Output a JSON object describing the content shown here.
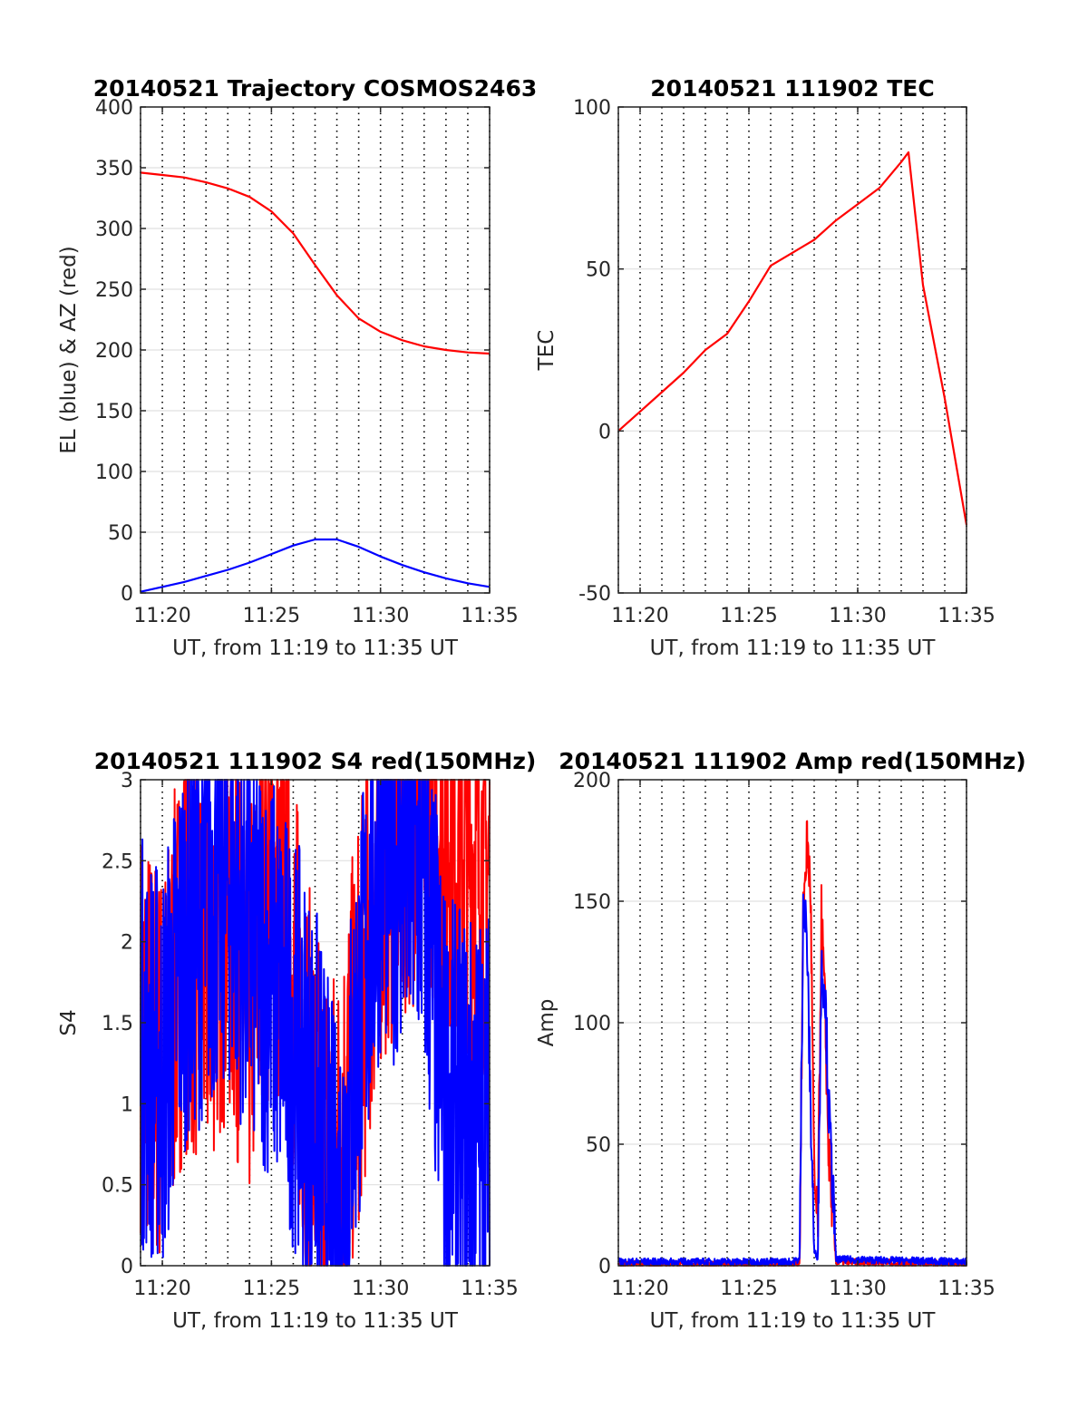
{
  "chart_data": [
    {
      "type": "line",
      "title": "20140521 Trajectory COSMOS2463",
      "xlabel": "UT, from 11:19 to 11:35 UT",
      "ylabel": "EL (blue) & AZ (red)",
      "xlim": [
        "11:19",
        "11:35"
      ],
      "ylim": [
        0,
        400
      ],
      "xticks": [
        "11:20",
        "11:25",
        "11:30",
        "11:35"
      ],
      "yticks": [
        0,
        50,
        100,
        150,
        200,
        250,
        300,
        350,
        400
      ],
      "grid": "dotted vertical every minute, horizontal at y ticks",
      "series": [
        {
          "color": "#ff0000",
          "x": [
            "11:19",
            "11:20",
            "11:21",
            "11:22",
            "11:23",
            "11:24",
            "11:25",
            "11:26",
            "11:27",
            "11:28",
            "11:29",
            "11:30",
            "11:31",
            "11:32",
            "11:33",
            "11:34",
            "11:35"
          ],
          "values": [
            346,
            344,
            342,
            338,
            333,
            326,
            314,
            296,
            270,
            245,
            226,
            215,
            208,
            203,
            200,
            198,
            197
          ]
        },
        {
          "color": "#0000ff",
          "x": [
            "11:19",
            "11:20",
            "11:21",
            "11:22",
            "11:23",
            "11:24",
            "11:25",
            "11:26",
            "11:27",
            "11:28",
            "11:29",
            "11:30",
            "11:31",
            "11:32",
            "11:33",
            "11:34",
            "11:35"
          ],
          "values": [
            1,
            5,
            9,
            14,
            19,
            25,
            32,
            39,
            44,
            44,
            38,
            30,
            23,
            17,
            12,
            8,
            5
          ]
        }
      ]
    },
    {
      "type": "line",
      "title": "20140521 111902 TEC",
      "xlabel": "UT, from 11:19 to 11:35 UT",
      "ylabel": "TEC",
      "xlim": [
        "11:19",
        "11:35"
      ],
      "ylim": [
        -50,
        100
      ],
      "xticks": [
        "11:20",
        "11:25",
        "11:30",
        "11:35"
      ],
      "yticks": [
        -50,
        0,
        50,
        100
      ],
      "grid": "dotted vertical every minute, horizontal at y ticks",
      "series": [
        {
          "color": "#ff0000",
          "x": [
            "11:19",
            "11:20",
            "11:21",
            "11:22",
            "11:23",
            "11:24",
            "11:25",
            "11:26",
            "11:27",
            "11:28",
            "11:29",
            "11:30",
            "11:31",
            "11:32",
            "11:32:20",
            "11:33",
            "11:34",
            "11:35"
          ],
          "values": [
            0,
            6,
            12,
            18,
            25,
            30,
            40,
            51,
            55,
            59,
            65,
            70,
            75,
            83,
            86,
            45,
            10,
            -29
          ]
        }
      ]
    },
    {
      "type": "line",
      "title": "20140521 111902 S4 red(150MHz)",
      "xlabel": "UT, from 11:19 to 11:35 UT",
      "ylabel": "S4",
      "xlim": [
        "11:19",
        "11:35"
      ],
      "ylim": [
        0,
        3
      ],
      "xticks": [
        "11:20",
        "11:25",
        "11:30",
        "11:35"
      ],
      "yticks": [
        0,
        0.5,
        1,
        1.5,
        2,
        2.5,
        3
      ],
      "grid": "dotted vertical every minute, horizontal at y ticks",
      "series": [
        {
          "color": "#ff0000",
          "x": [
            "11:19",
            "11:20",
            "11:21",
            "11:22",
            "11:23",
            "11:24",
            "11:25",
            "11:26",
            "11:27",
            "11:28",
            "11:29",
            "11:30",
            "11:31",
            "11:32",
            "11:33",
            "11:34",
            "11:35"
          ],
          "values": [
            1.5,
            1.2,
            2.0,
            1.8,
            2.2,
            1.6,
            2.4,
            1.8,
            0.8,
            0.6,
            1.5,
            2.5,
            2.8,
            3.0,
            2.8,
            2.6,
            2.4
          ]
        },
        {
          "color": "#0000ff",
          "x": [
            "11:19",
            "11:20",
            "11:21",
            "11:22",
            "11:23",
            "11:24",
            "11:25",
            "11:26",
            "11:27",
            "11:28",
            "11:29",
            "11:30",
            "11:31",
            "11:32",
            "11:33",
            "11:34",
            "11:35"
          ],
          "values": [
            1.4,
            1.2,
            2.0,
            2.2,
            2.4,
            2.0,
            1.8,
            1.4,
            1.0,
            0.2,
            1.5,
            2.6,
            2.5,
            2.4,
            1.0,
            0.9,
            0.95
          ]
        }
      ]
    },
    {
      "type": "line",
      "title": "20140521 111902 Amp red(150MHz)",
      "xlabel": "UT, from 11:19 to 11:35 UT",
      "ylabel": "Amp",
      "xlim": [
        "11:19",
        "11:35"
      ],
      "ylim": [
        0,
        200
      ],
      "xticks": [
        "11:20",
        "11:25",
        "11:30",
        "11:35"
      ],
      "yticks": [
        0,
        50,
        100,
        150,
        200
      ],
      "grid": "dotted vertical every minute, horizontal at y ticks",
      "series": [
        {
          "color": "#ff0000",
          "x": [
            "11:19",
            "11:27",
            "11:27:20",
            "11:27:30",
            "11:27:40",
            "11:27:50",
            "11:28",
            "11:28:10",
            "11:28:20",
            "11:28:30",
            "11:28:40",
            "11:29",
            "11:35"
          ],
          "values": [
            0,
            0,
            1,
            140,
            170,
            150,
            30,
            10,
            140,
            100,
            40,
            1,
            0
          ]
        },
        {
          "color": "#0000ff",
          "x": [
            "11:19",
            "11:27",
            "11:27:20",
            "11:27:30",
            "11:27:40",
            "11:27:50",
            "11:28",
            "11:28:10",
            "11:28:20",
            "11:28:30",
            "11:28:40",
            "11:29",
            "11:35"
          ],
          "values": [
            1,
            1,
            2,
            148,
            130,
            60,
            5,
            3,
            118,
            110,
            60,
            2,
            1
          ]
        }
      ]
    }
  ]
}
